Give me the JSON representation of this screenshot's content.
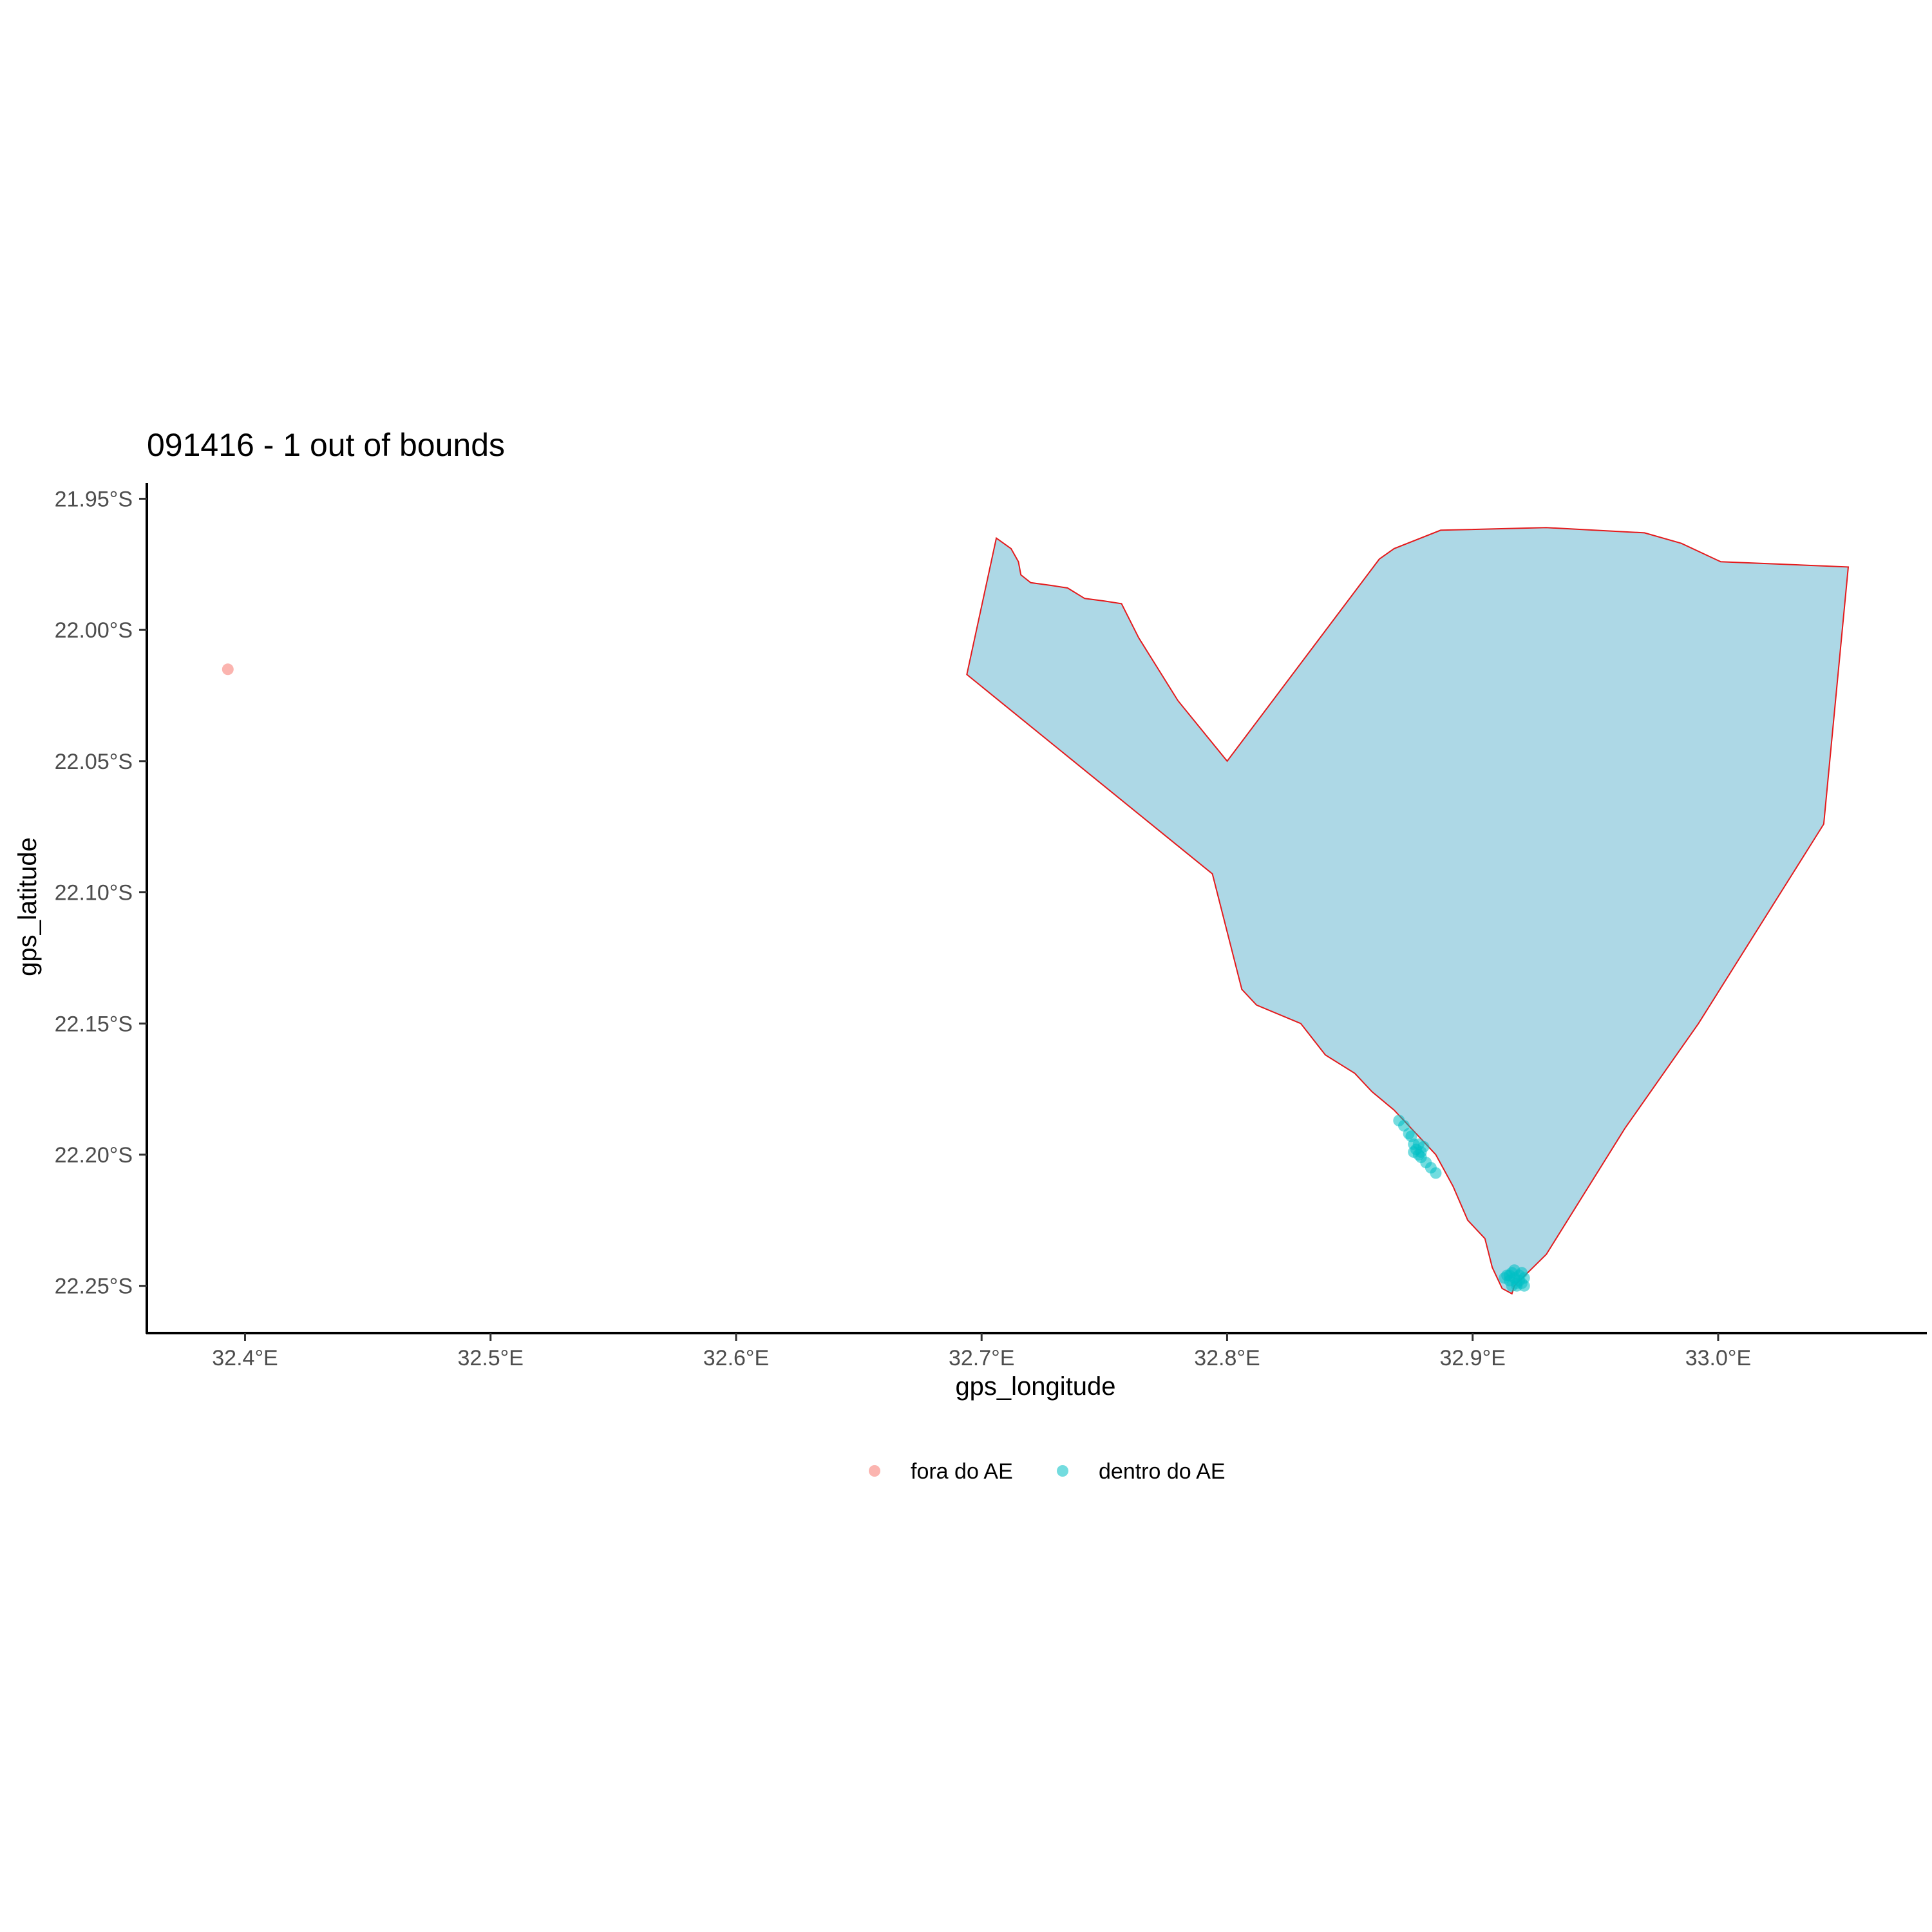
{
  "chart_data": {
    "type": "scatter",
    "title": "091416 - 1 out of bounds",
    "xlabel": "gps_longitude",
    "ylabel": "gps_latitude",
    "xlim": [
      32.36,
      33.085
    ],
    "ylim": [
      -22.268,
      -21.944
    ],
    "x_ticks": [
      32.4,
      32.5,
      32.6,
      32.7,
      32.8,
      32.9,
      33.0
    ],
    "x_tick_labels": [
      "32.4°E",
      "32.5°E",
      "32.6°E",
      "32.7°E",
      "32.8°E",
      "32.9°E",
      "33.0°E"
    ],
    "y_ticks": [
      -21.95,
      -22.0,
      -22.05,
      -22.1,
      -22.15,
      -22.2,
      -22.25
    ],
    "y_tick_labels": [
      "21.95°S",
      "22.00°S",
      "22.05°S",
      "22.10°S",
      "22.15°S",
      "22.20°S",
      "22.25°S"
    ],
    "grid": false,
    "legend_position": "bottom",
    "region": {
      "fill": "#add8e6",
      "stroke": "#e41a1c",
      "boundary": [
        [
          32.706,
          -21.965
        ],
        [
          32.712,
          -21.969
        ],
        [
          32.715,
          -21.974
        ],
        [
          32.716,
          -21.979
        ],
        [
          32.72,
          -21.982
        ],
        [
          32.728,
          -21.983
        ],
        [
          32.735,
          -21.984
        ],
        [
          32.742,
          -21.988
        ],
        [
          32.75,
          -21.989
        ],
        [
          32.757,
          -21.99
        ],
        [
          32.764,
          -22.003
        ],
        [
          32.78,
          -22.027
        ],
        [
          32.8,
          -22.05
        ],
        [
          32.862,
          -21.973
        ],
        [
          32.868,
          -21.969
        ],
        [
          32.887,
          -21.962
        ],
        [
          32.93,
          -21.961
        ],
        [
          32.97,
          -21.963
        ],
        [
          32.985,
          -21.967
        ],
        [
          33.001,
          -21.974
        ],
        [
          33.053,
          -21.976
        ],
        [
          33.043,
          -22.074
        ],
        [
          32.992,
          -22.15
        ],
        [
          32.962,
          -22.19
        ],
        [
          32.93,
          -22.238
        ],
        [
          32.917,
          -22.25
        ],
        [
          32.916,
          -22.253
        ],
        [
          32.912,
          -22.251
        ],
        [
          32.908,
          -22.243
        ],
        [
          32.905,
          -22.232
        ],
        [
          32.898,
          -22.225
        ],
        [
          32.892,
          -22.212
        ],
        [
          32.885,
          -22.2
        ],
        [
          32.875,
          -22.19
        ],
        [
          32.868,
          -22.183
        ],
        [
          32.859,
          -22.176
        ],
        [
          32.852,
          -22.169
        ],
        [
          32.84,
          -22.162
        ],
        [
          32.83,
          -22.15
        ],
        [
          32.812,
          -22.143
        ],
        [
          32.806,
          -22.137
        ],
        [
          32.794,
          -22.093
        ],
        [
          32.694,
          -22.017
        ],
        [
          32.706,
          -21.965
        ]
      ]
    },
    "series": [
      {
        "name": "fora do AE",
        "color": "#f8766d",
        "points": [
          [
            32.393,
            -22.015
          ]
        ]
      },
      {
        "name": "dentro do AE",
        "color": "#00bfc4",
        "points": [
          [
            32.87,
            -22.187
          ],
          [
            32.872,
            -22.189
          ],
          [
            32.874,
            -22.192
          ],
          [
            32.875,
            -22.193
          ],
          [
            32.876,
            -22.196
          ],
          [
            32.877,
            -22.198
          ],
          [
            32.878,
            -22.196
          ],
          [
            32.879,
            -22.199
          ],
          [
            32.88,
            -22.197
          ],
          [
            32.878,
            -22.2
          ],
          [
            32.879,
            -22.201
          ],
          [
            32.881,
            -22.203
          ],
          [
            32.883,
            -22.205
          ],
          [
            32.885,
            -22.207
          ],
          [
            32.876,
            -22.199
          ],
          [
            32.913,
            -22.247
          ],
          [
            32.914,
            -22.246
          ],
          [
            32.915,
            -22.248
          ],
          [
            32.916,
            -22.245
          ],
          [
            32.917,
            -22.247
          ],
          [
            32.918,
            -22.249
          ],
          [
            32.919,
            -22.246
          ],
          [
            32.92,
            -22.245
          ],
          [
            32.921,
            -22.247
          ],
          [
            32.916,
            -22.25
          ],
          [
            32.918,
            -22.25
          ],
          [
            32.92,
            -22.249
          ],
          [
            32.917,
            -22.244
          ],
          [
            32.919,
            -22.248
          ],
          [
            32.921,
            -22.25
          ],
          [
            32.915,
            -22.246
          ]
        ]
      }
    ]
  }
}
